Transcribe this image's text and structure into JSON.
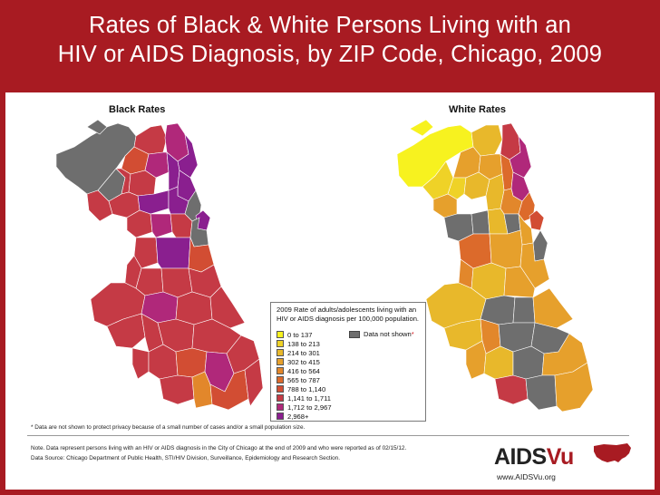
{
  "title": {
    "line1": "Rates of Black & White Persons Living with an",
    "line2": "HIV or AIDS Diagnosis, by ZIP Code, Chicago, 2009"
  },
  "maps": {
    "black_label": "Black Rates",
    "white_label": "White Rates"
  },
  "legend": {
    "title": "2009 Rate of adults/adolescents living with an HIV or AIDS diagnosis per 100,000 population.",
    "items": [
      {
        "label": "0 to 137",
        "color": "#f7f21f"
      },
      {
        "label": "138 to 213",
        "color": "#efd227"
      },
      {
        "label": "214 to 301",
        "color": "#e8b82b"
      },
      {
        "label": "302 to 415",
        "color": "#e6a02c"
      },
      {
        "label": "416 to 564",
        "color": "#e2872b"
      },
      {
        "label": "565 to 787",
        "color": "#dc6a2b"
      },
      {
        "label": "788 to 1,140",
        "color": "#d24d33"
      },
      {
        "label": "1,141 to 1,711",
        "color": "#c53a45"
      },
      {
        "label": "1,712 to 2,967",
        "color": "#b0287a"
      },
      {
        "label": "2,968+",
        "color": "#8a1f8f"
      }
    ],
    "not_shown_label": "Data not shown",
    "not_shown_asterisk": "*",
    "not_shown_color": "#6e6e6e"
  },
  "footnote": "* Data are not shown to protect privacy because of a small number of cases and/or a small population size.",
  "notes": {
    "line1": "Note. Data represent persons living with an HIV or AIDS diagnosis in the City of Chicago at the end of 2009 and who were reported as of 02/15/12.",
    "line2": "Data Source: Chicago Department of Public Health, STI/HIV Division, Surveillance, Epidemiology and Research Section."
  },
  "logo": {
    "aids": "AIDS",
    "vu": "Vu",
    "url": "www.AIDSVu.org"
  },
  "colors": {
    "frame": "#a81b22",
    "background": "#ffffff"
  }
}
